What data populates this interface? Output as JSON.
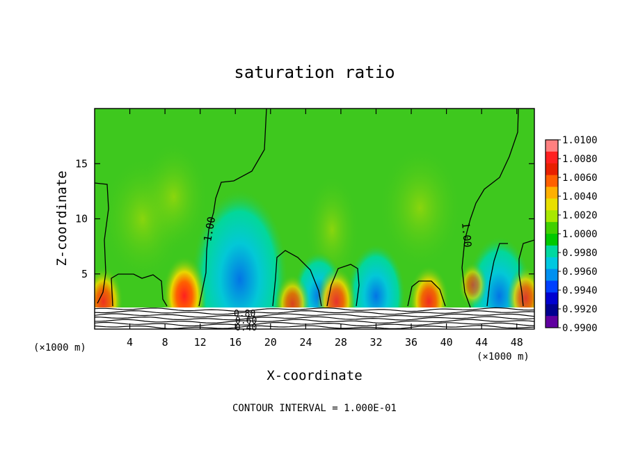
{
  "chart_data": {
    "type": "heatmap",
    "title": "saturation ratio",
    "xlabel": "X-coordinate",
    "ylabel": "Z-coordinate",
    "x_unit": "(×1000 m)",
    "xlim": [
      0,
      50
    ],
    "ylim": [
      0,
      20
    ],
    "x_ticks": [
      "4",
      "8",
      "12",
      "16",
      "20",
      "24",
      "28",
      "32",
      "36",
      "40",
      "44",
      "48"
    ],
    "y_ticks": [
      "5",
      "10",
      "15"
    ],
    "contour_interval_text": "CONTOUR INTERVAL = 1.000E-01",
    "contour_labels": [
      "1.00",
      "1.00",
      "0.80",
      "0.60",
      "0.40"
    ],
    "colorbar": {
      "labels": [
        "1.0100",
        "1.0080",
        "1.0060",
        "1.0040",
        "1.0020",
        "1.0000",
        "0.9980",
        "0.9960",
        "0.9940",
        "0.9920",
        "0.9900"
      ],
      "colors": [
        "#ff8080",
        "#ff2020",
        "#e82000",
        "#ff6000",
        "#ffb000",
        "#e8e000",
        "#a8e800",
        "#40d000",
        "#00c800",
        "#00d8a0",
        "#00c8e0",
        "#0090f0",
        "#0040ff",
        "#0000d0",
        "#000090",
        "#6000a0"
      ]
    },
    "field": {
      "background": "#3ec81e",
      "hotspots": [
        {
          "x": 10.2,
          "z": 3.0,
          "strength": 1.0
        },
        {
          "x": 1.0,
          "z": 2.5,
          "strength": 0.8
        },
        {
          "x": 22.5,
          "z": 2.3,
          "strength": 0.6
        },
        {
          "x": 27.5,
          "z": 2.5,
          "strength": 0.8
        },
        {
          "x": 38.0,
          "z": 2.5,
          "strength": 0.85
        },
        {
          "x": 49.0,
          "z": 2.8,
          "strength": 0.7
        },
        {
          "x": 43.0,
          "z": 4.0,
          "strength": 0.35
        }
      ],
      "coldspots": [
        {
          "x": 16.5,
          "z": 4.5,
          "strength": 1.0
        },
        {
          "x": 32.0,
          "z": 3.0,
          "strength": 0.5
        },
        {
          "x": 46.0,
          "z": 3.0,
          "strength": 0.6
        },
        {
          "x": 25.5,
          "z": 3.0,
          "strength": 0.4
        }
      ]
    }
  }
}
